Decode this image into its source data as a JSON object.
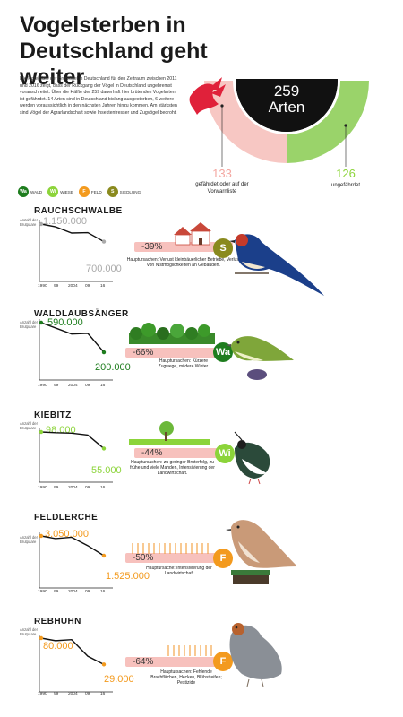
{
  "title": "Vogelsterben in Deutschland geht weiter",
  "intro": "Die Rote Liste der Brutvögel in Deutschland für den Zeitraum zwischen 2011 und 2016 zeigt, dass der Rückgang der Vögel in Deutschland ungebremst voranschreitet. Über die Hälfte der 259 dauerhaft hier brütenden Vogelarten ist gefährdet. 14 Arten sind in Deutschland bislang ausgestorben, 6 weitere werden voraussichtlich in den nächsten Jahren hinzu kommen. Am stärksten sind Vögel der Agrarlandschaft sowie Insektenfresser und Zugvögel bedroht.",
  "summary": {
    "total_number": "259",
    "total_label": "Arten",
    "endangered_number": "133",
    "endangered_label": "gefährdet oder auf der Vorwarnliste",
    "safe_number": "126",
    "safe_label": "ungefährdet",
    "colors": {
      "endangered": "#f7c7c3",
      "safe": "#9ad36a",
      "center": "#111111",
      "bird": "#e0213a"
    }
  },
  "legend": [
    {
      "code": "Wa",
      "label": "WALD",
      "color": "#1e7d1e"
    },
    {
      "code": "Wi",
      "label": "WIESE",
      "color": "#8cd43a"
    },
    {
      "code": "F",
      "label": "FELD",
      "color": "#f39a1e"
    },
    {
      "code": "S",
      "label": "SIEDLUNG",
      "color": "#8a8a1e"
    }
  ],
  "axis_caption": "Anzahl der Brutpaare",
  "x_labels": [
    "1990",
    "99",
    "2004",
    "09",
    "16"
  ],
  "chart_data": [
    {
      "type": "line",
      "title": "RAUCHSCHWALBE",
      "x": [
        "1990",
        "99",
        "2004",
        "09",
        "16"
      ],
      "values": [
        1150000,
        1080000,
        920000,
        930000,
        700000
      ],
      "start_label": "1.150.000",
      "end_label": "700.000",
      "change": "-39%",
      "cause": "Hauptursachen: Verlust kleinbäuerlicher Betriebe, Verlust von Nistmöglichkeiten an Gebäuden.",
      "habitat": "S",
      "color": "#aaaaaa",
      "bar_color": "#f7c1bd"
    },
    {
      "type": "line",
      "title": "WALDLAUBSÄNGER",
      "x": [
        "1990",
        "99",
        "2004",
        "09",
        "16"
      ],
      "values": [
        590000,
        520000,
        440000,
        450000,
        200000
      ],
      "start_label": "590.000",
      "end_label": "200.000",
      "change": "-66%",
      "cause": "Hauptursachen: Kürzere Zugwege, mildere Winter.",
      "habitat": "Wa",
      "color": "#1e7d1e",
      "bar_color": "#f7c1bd"
    },
    {
      "type": "line",
      "title": "KIEBITZ",
      "x": [
        "1990",
        "99",
        "2004",
        "09",
        "16"
      ],
      "values": [
        98000,
        96000,
        95000,
        90000,
        55000
      ],
      "start_label": "98.000",
      "end_label": "55.000",
      "change": "-44%",
      "cause": "Hauptursachen: zu geringer Bruterfolg, zu frühe und viele Mahden, Intensivierung der Landwirtschaft.",
      "habitat": "Wi",
      "color": "#8cd43a",
      "bar_color": "#f7c1bd"
    },
    {
      "type": "line",
      "title": "FELDLERCHE",
      "x": [
        "1990",
        "99",
        "2004",
        "09",
        "16"
      ],
      "values": [
        3050000,
        2850000,
        2950000,
        2300000,
        1525000
      ],
      "start_label": "3.050.000",
      "end_label": "1.525.000",
      "change": "-50%",
      "cause": "Hauptursache: Intensivierung der Landwirtschaft",
      "habitat": "F",
      "color": "#f39a1e",
      "bar_color": "#f7c1bd"
    },
    {
      "type": "line",
      "title": "REBHUHN",
      "x": [
        "1990",
        "99",
        "2004",
        "09",
        "16"
      ],
      "values": [
        80000,
        75000,
        77000,
        45000,
        29000
      ],
      "start_label": "80.000",
      "end_label": "29.000",
      "change": "-64%",
      "cause": "Hauptursachen: Fehlende Brachflächen, Hecken, Blühstreifen; Pestizide",
      "habitat": "F",
      "color": "#f39a1e",
      "bar_color": "#f7c1bd"
    }
  ]
}
